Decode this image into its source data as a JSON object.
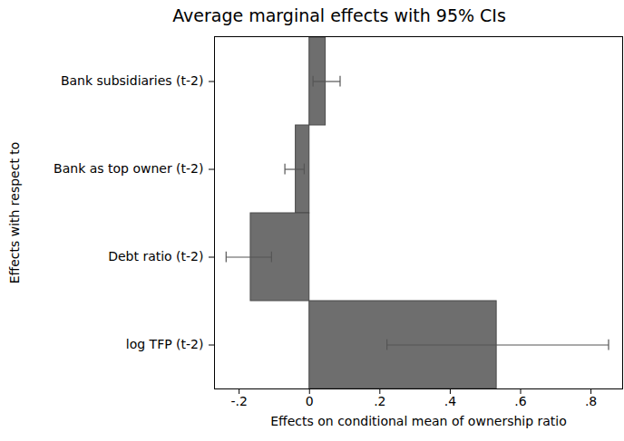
{
  "chart_data": {
    "type": "bar",
    "orientation": "horizontal",
    "title": "Average marginal effects with 95% CIs",
    "x_label": "Effects on conditional mean of ownership ratio",
    "y_label": "Effects with respect to",
    "categories": [
      "Bank subsidiaries (t-2)",
      "Bank as top owner (t-2)",
      "Debt ratio (t-2)",
      "log TFP (t-2)"
    ],
    "values": [
      0.046,
      -0.039,
      -0.167,
      0.532
    ],
    "ci_low": [
      0.01,
      -0.07,
      -0.237,
      0.22
    ],
    "ci_high": [
      0.087,
      -0.015,
      -0.108,
      0.85
    ],
    "color": "#6e6e6e",
    "xlim": [
      -0.27,
      0.89
    ],
    "xticks": [
      {
        "value": -0.2,
        "label": "-.2"
      },
      0,
      {
        "value": 0.2,
        "label": ".2"
      },
      {
        "value": 0.4,
        "label": ".4"
      },
      {
        "value": 0.6,
        "label": ".6"
      },
      {
        "value": 0.8,
        "label": ".8"
      }
    ],
    "grid": false
  }
}
